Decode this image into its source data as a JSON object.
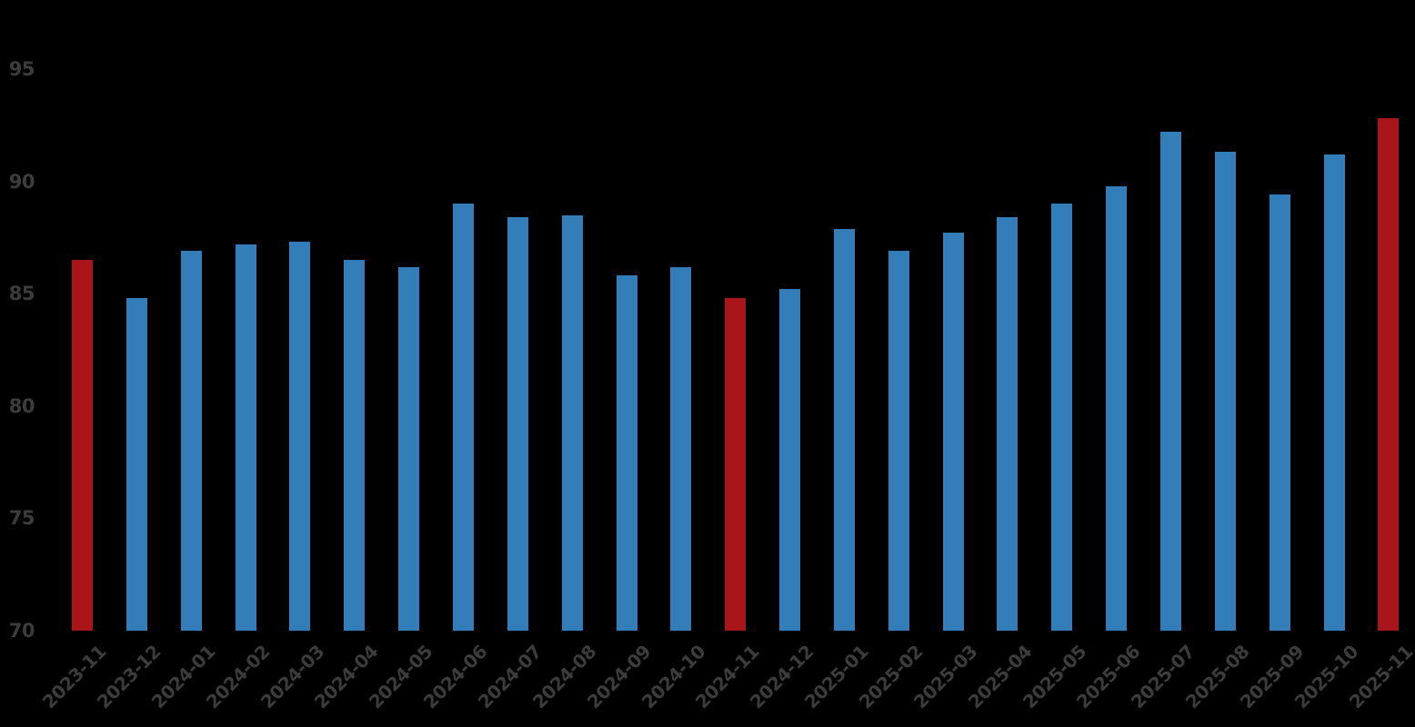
{
  "chart_data": {
    "type": "bar",
    "title": "",
    "xlabel": "",
    "ylabel": "",
    "grid": false,
    "legend": false,
    "x_tick_rotation_deg": 45,
    "ylim": [
      70,
      95.9
    ],
    "y_ticks": [
      70,
      75,
      80,
      85,
      90,
      95
    ],
    "categories": [
      "2023-11",
      "2023-12",
      "2024-01",
      "2024-02",
      "2024-03",
      "2024-04",
      "2024-05",
      "2024-06",
      "2024-07",
      "2024-08",
      "2024-09",
      "2024-10",
      "2024-11",
      "2024-12",
      "2025-01",
      "2025-02",
      "2025-03",
      "2025-04",
      "2025-05",
      "2025-06",
      "2025-07",
      "2025-08",
      "2025-09",
      "2025-10",
      "2025-11"
    ],
    "values": [
      86.5,
      84.8,
      86.9,
      87.2,
      87.3,
      86.5,
      86.2,
      89.0,
      88.4,
      88.5,
      85.8,
      86.2,
      84.8,
      85.2,
      87.9,
      86.9,
      87.7,
      88.4,
      89.0,
      89.8,
      92.2,
      91.3,
      89.4,
      91.2,
      92.8
    ],
    "highlighted_categories": [
      "2023-11",
      "2024-11",
      "2025-11"
    ],
    "bar_color": "#337EB8",
    "highlight_color": "#AA151A",
    "tick_label_color": "#3C3C3C",
    "background_color": "#000000"
  }
}
